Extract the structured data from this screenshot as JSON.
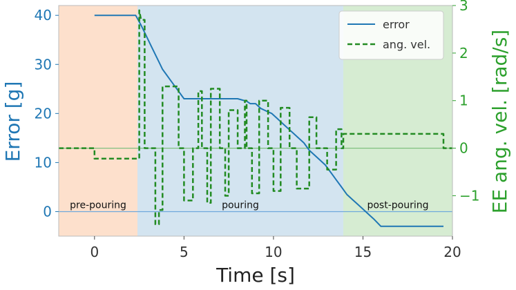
{
  "chart_data": {
    "type": "line",
    "xlabel": "Time [s]",
    "ylabel_left": "Error [g]",
    "ylabel_right": "EE ang. vel. [rad/s]",
    "xlim": [
      -2,
      20
    ],
    "ylim_left": [
      -5,
      42
    ],
    "ylim_right": [
      -1.85,
      3.0
    ],
    "xticks": [
      0,
      5,
      10,
      15,
      20
    ],
    "yticks_left": [
      0,
      10,
      20,
      30,
      40
    ],
    "yticks_right": [
      -1,
      0,
      1,
      2,
      3
    ],
    "grid": false,
    "legend_position": "top-right",
    "colors": {
      "error": "#1f77b4",
      "ang_vel": "#228b22",
      "pre_region": "#fde0cc",
      "pour_region": "#d3e4f0",
      "post_region": "#d6ecd2",
      "zero_line_left": "#6fa8dc",
      "zero_line_right": "#7fbf7f"
    },
    "phases": [
      {
        "label": "pre-pouring",
        "x_start": -2,
        "x_end": 2.4
      },
      {
        "label": "pouring",
        "x_start": 2.4,
        "x_end": 13.9
      },
      {
        "label": "post-pouring",
        "x_start": 13.9,
        "x_end": 20
      }
    ],
    "series": [
      {
        "name": "error",
        "axis": "left",
        "style": "solid",
        "x": [
          0,
          2.3,
          2.6,
          2.8,
          3.0,
          3.2,
          3.4,
          3.6,
          3.8,
          4.0,
          4.2,
          4.4,
          4.6,
          4.8,
          4.9,
          5.0,
          5.6,
          6.0,
          6.4,
          7.0,
          7.5,
          8.0,
          8.5,
          8.7,
          9.0,
          9.3,
          9.6,
          9.9,
          10.2,
          10.5,
          10.8,
          11.1,
          11.4,
          11.7,
          12.0,
          12.3,
          12.6,
          12.9,
          13.2,
          13.5,
          13.8,
          14.1,
          14.4,
          14.7,
          15.0,
          15.3,
          15.6,
          16.0,
          17.0,
          18.0,
          19.5
        ],
        "y": [
          40,
          40,
          38,
          36.5,
          35,
          33.5,
          32,
          30.5,
          29,
          28,
          27,
          26,
          25,
          24,
          23.5,
          23,
          23,
          23,
          23,
          23,
          23,
          23,
          22.5,
          22,
          22,
          21,
          20.5,
          20,
          19,
          18,
          17,
          16,
          15,
          14,
          12.5,
          11.5,
          10.5,
          9.5,
          8,
          6.5,
          5,
          3.5,
          2.5,
          1.5,
          0.5,
          -0.5,
          -1.5,
          -3,
          -3,
          -3,
          -3
        ]
      },
      {
        "name": "ang. vel.",
        "axis": "right",
        "style": "dashed",
        "x": [
          -2,
          0,
          0,
          2.5,
          2.5,
          2.6,
          2.8,
          2.8,
          3.4,
          3.4,
          3.6,
          3.6,
          3.8,
          3.8,
          4.7,
          4.7,
          5.0,
          5.0,
          5.5,
          5.5,
          5.8,
          5.8,
          6.0,
          6.0,
          6.3,
          6.3,
          6.5,
          6.5,
          7.0,
          7.0,
          7.3,
          7.3,
          7.5,
          7.5,
          8.0,
          8.0,
          8.4,
          8.4,
          8.5,
          8.5,
          8.8,
          8.8,
          9.2,
          9.2,
          9.7,
          9.7,
          10.0,
          10.0,
          10.4,
          10.4,
          10.9,
          10.9,
          11.3,
          11.3,
          12.0,
          12.0,
          12.4,
          12.4,
          13.0,
          13.0,
          13.5,
          13.5,
          13.8,
          13.8,
          13.9,
          13.9,
          19.5,
          19.5,
          20
        ],
        "y": [
          0,
          0,
          -0.22,
          -0.22,
          2.9,
          2.7,
          2.7,
          0,
          0,
          -1.6,
          -1.6,
          -1.3,
          -1.3,
          1.3,
          1.3,
          0,
          0,
          -1.1,
          -1.1,
          0,
          0,
          1.2,
          1.2,
          0,
          0,
          -1.15,
          -1.15,
          1.25,
          1.25,
          0,
          0,
          -1.0,
          -1.0,
          0.8,
          0.8,
          0,
          0,
          1.0,
          1.0,
          0,
          0,
          -0.95,
          -0.95,
          1.0,
          1.0,
          0,
          0,
          -0.9,
          -0.9,
          0.85,
          0.85,
          0,
          0,
          -0.85,
          -0.85,
          0.65,
          0.65,
          0,
          0,
          -0.45,
          -0.45,
          0.4,
          0.4,
          0,
          0,
          0.3,
          0.3,
          0,
          0
        ]
      }
    ]
  }
}
